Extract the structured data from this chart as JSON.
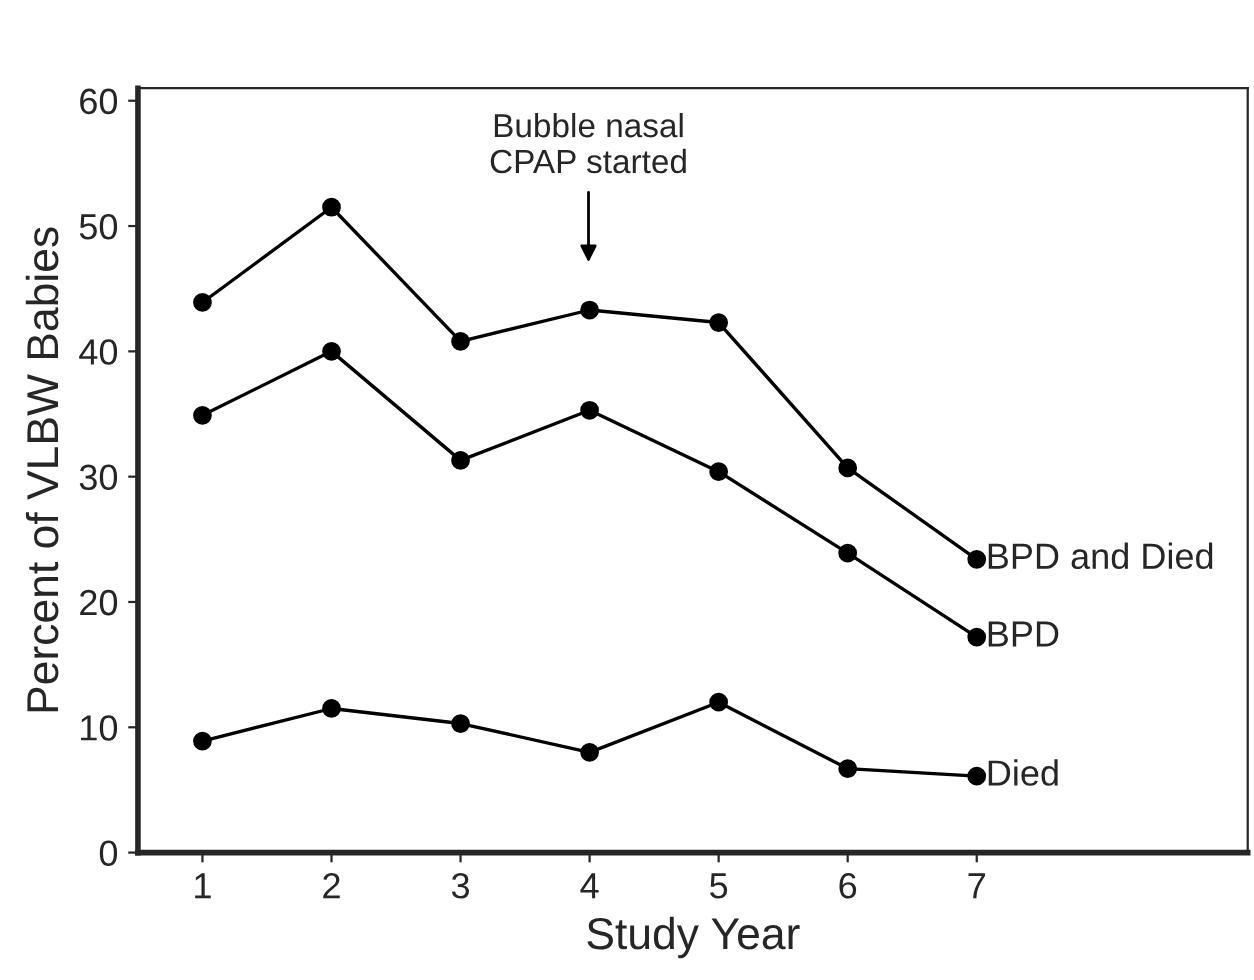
{
  "chart_data": {
    "type": "line",
    "xlabel": "Study Year",
    "ylabel": "Percent of VLBW Babies",
    "x": [
      1,
      2,
      3,
      4,
      5,
      6,
      7
    ],
    "series": [
      {
        "name": "BPD and Died",
        "color": "#000000",
        "values": [
          43.9,
          51.5,
          40.8,
          43.3,
          42.3,
          30.7,
          23.4
        ]
      },
      {
        "name": "BPD",
        "color": "#000000",
        "values": [
          34.9,
          40,
          31.3,
          35.3,
          30.4,
          23.9,
          17.2
        ]
      },
      {
        "name": "Died",
        "color": "#000000",
        "values": [
          8.9,
          11.5,
          10.3,
          8,
          12,
          6.7,
          6.1
        ]
      }
    ],
    "xlim": [
      0.5,
      9.1
    ],
    "ylim": [
      0,
      61
    ],
    "xticks": [
      1,
      2,
      3,
      4,
      5,
      6,
      7
    ],
    "yticks": [
      0,
      10,
      20,
      30,
      40,
      50,
      60
    ],
    "annotations": [
      "Bubble nasal\nCPAP started"
    ],
    "marker": "circle",
    "line_style": "solid",
    "grid": false,
    "legend": false
  }
}
